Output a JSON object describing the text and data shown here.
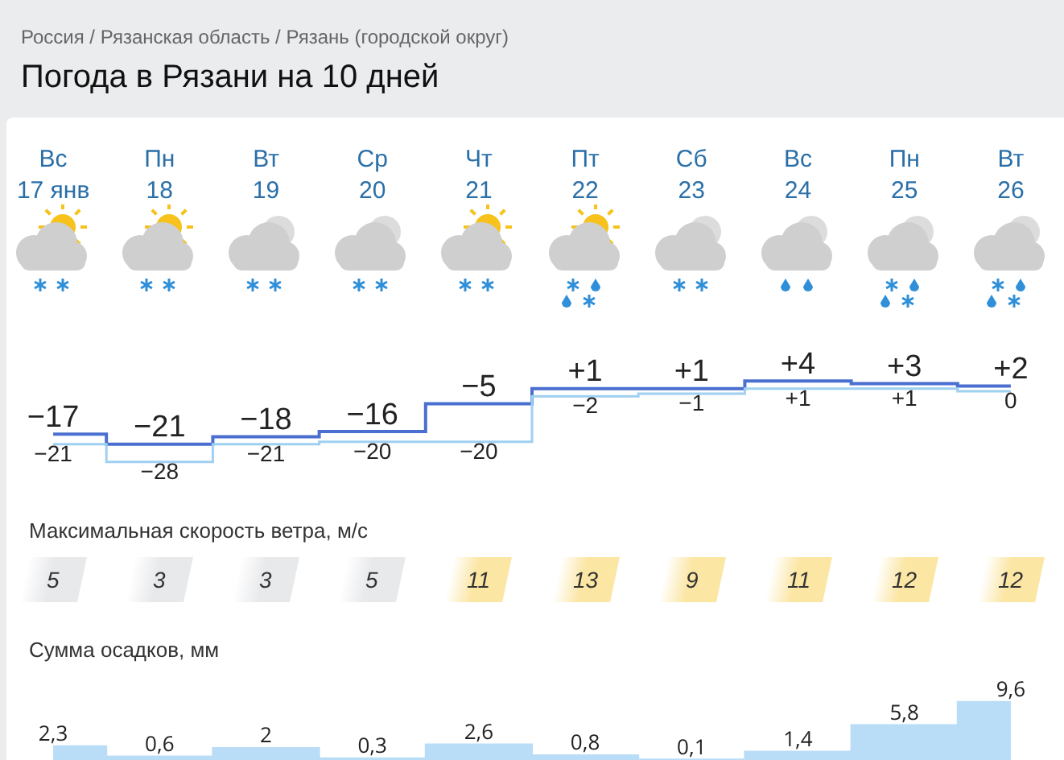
{
  "chart_data": [
    {
      "type": "step",
      "title": "Погода в Рязани на 10 дней",
      "annotations": [
        "Россия / Рязанская область / Рязань (городской округ)"
      ],
      "categories": [
        "Вс\n17 янв",
        "Пн\n18",
        "Вт\n19",
        "Ср\n20",
        "Чт\n21",
        "Пт\n22",
        "Сб\n23",
        "Вс\n24",
        "Пн\n25",
        "Вт\n26"
      ],
      "series": [
        {
          "color": "#4a6fd0",
          "values": [
            -17,
            -21,
            -18,
            -16,
            -5,
            1,
            1,
            4,
            3,
            2
          ],
          "value_labels": [
            "−17",
            "−21",
            "−18",
            "−16",
            "−5",
            "+1",
            "+1",
            "+4",
            "+3",
            "+2"
          ]
        },
        {
          "color": "#9fd0f0",
          "values": [
            -21,
            -28,
            -21,
            -20,
            -20,
            -2,
            -1,
            1,
            1,
            0
          ],
          "value_labels": [
            "−21",
            "−28",
            "−21",
            "−20",
            "−20",
            "−2",
            "−1",
            "+1",
            "+1",
            "0"
          ]
        }
      ],
      "tick_labels": "x",
      "grid": false,
      "legend": false
    },
    {
      "type": "other",
      "title": "Максимальная скорость ветра, м/с",
      "categories": [
        null,
        null,
        null,
        null,
        null,
        null,
        null,
        null,
        null,
        null
      ],
      "values": [
        5,
        3,
        3,
        5,
        11,
        13,
        9,
        11,
        12,
        12
      ],
      "colors": [
        "#e8e9eb",
        "#e8e9eb",
        "#e8e9eb",
        "#e8e9eb",
        "#fbe6a4",
        "#fbe6a4",
        "#fbe6a4",
        "#fbe6a4",
        "#fbe6a4",
        "#fbe6a4"
      ],
      "data_labels": true
    },
    {
      "type": "area",
      "title": "Сумма осадков, мм",
      "categories": [
        null,
        null,
        null,
        null,
        null,
        null,
        null,
        null,
        null,
        null
      ],
      "series": [
        {
          "color": "#b9dcf7",
          "values": [
            2.3,
            0.6,
            2,
            0.3,
            2.6,
            0.8,
            0.1,
            1.4,
            5.8,
            9.6
          ],
          "value_labels": [
            "2,3",
            "0,6",
            "2",
            "0,3",
            "2,6",
            "0,8",
            "0,1",
            "1,4",
            "5,8",
            "9,6"
          ]
        }
      ],
      "tick_labels": false,
      "grid": false,
      "legend": false
    }
  ]
}
